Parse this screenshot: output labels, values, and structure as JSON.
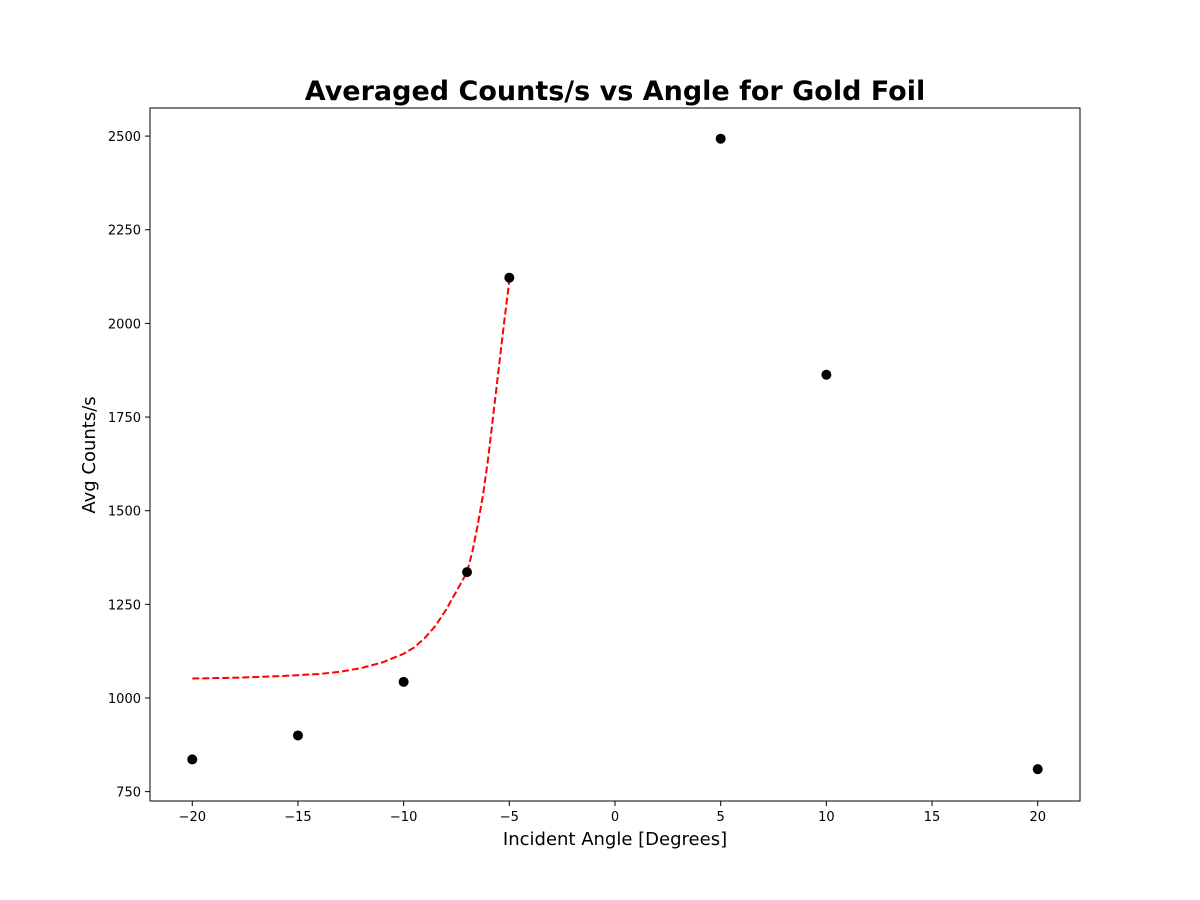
{
  "chart_data": {
    "type": "scatter",
    "title": "Averaged Counts/s vs Angle for Gold Foil",
    "xlabel": "Incident Angle [Degrees]",
    "ylabel": "Avg Counts/s",
    "xlim": [
      -22,
      22
    ],
    "ylim": [
      725,
      2575
    ],
    "xticks": [
      -20,
      -15,
      -10,
      -5,
      0,
      5,
      10,
      15,
      20
    ],
    "xtick_labels": [
      "−20",
      "−15",
      "−10",
      "−5",
      "0",
      "5",
      "10",
      "15",
      "20"
    ],
    "yticks": [
      750,
      1000,
      1250,
      1500,
      1750,
      2000,
      2250,
      2500
    ],
    "ytick_labels": [
      "750",
      "1000",
      "1250",
      "1500",
      "1750",
      "2000",
      "2250",
      "2500"
    ],
    "grid": false,
    "series": [
      {
        "kind": "scatter",
        "color": "#000000",
        "points": [
          {
            "x": -20,
            "y": 836
          },
          {
            "x": -15,
            "y": 900
          },
          {
            "x": -10,
            "y": 1043
          },
          {
            "x": -7,
            "y": 1336
          },
          {
            "x": -5,
            "y": 2122
          },
          {
            "x": 5,
            "y": 2493
          },
          {
            "x": 10,
            "y": 1863
          },
          {
            "x": 20,
            "y": 810
          }
        ]
      },
      {
        "kind": "line",
        "style": "dashed",
        "color": "#ff0000",
        "points": [
          {
            "x": -20,
            "y": 1052
          },
          {
            "x": -18,
            "y": 1054
          },
          {
            "x": -16,
            "y": 1058
          },
          {
            "x": -14,
            "y": 1064
          },
          {
            "x": -13,
            "y": 1070
          },
          {
            "x": -12,
            "y": 1080
          },
          {
            "x": -11,
            "y": 1095
          },
          {
            "x": -10,
            "y": 1118
          },
          {
            "x": -9.5,
            "y": 1135
          },
          {
            "x": -9,
            "y": 1160
          },
          {
            "x": -8.5,
            "y": 1192
          },
          {
            "x": -8,
            "y": 1235
          },
          {
            "x": -7.5,
            "y": 1285
          },
          {
            "x": -7,
            "y": 1336
          },
          {
            "x": -6.75,
            "y": 1390
          },
          {
            "x": -6.5,
            "y": 1460
          },
          {
            "x": -6.25,
            "y": 1540
          },
          {
            "x": -6,
            "y": 1640
          },
          {
            "x": -5.75,
            "y": 1760
          },
          {
            "x": -5.5,
            "y": 1880
          },
          {
            "x": -5.25,
            "y": 2000
          },
          {
            "x": -5,
            "y": 2115
          }
        ]
      }
    ]
  }
}
